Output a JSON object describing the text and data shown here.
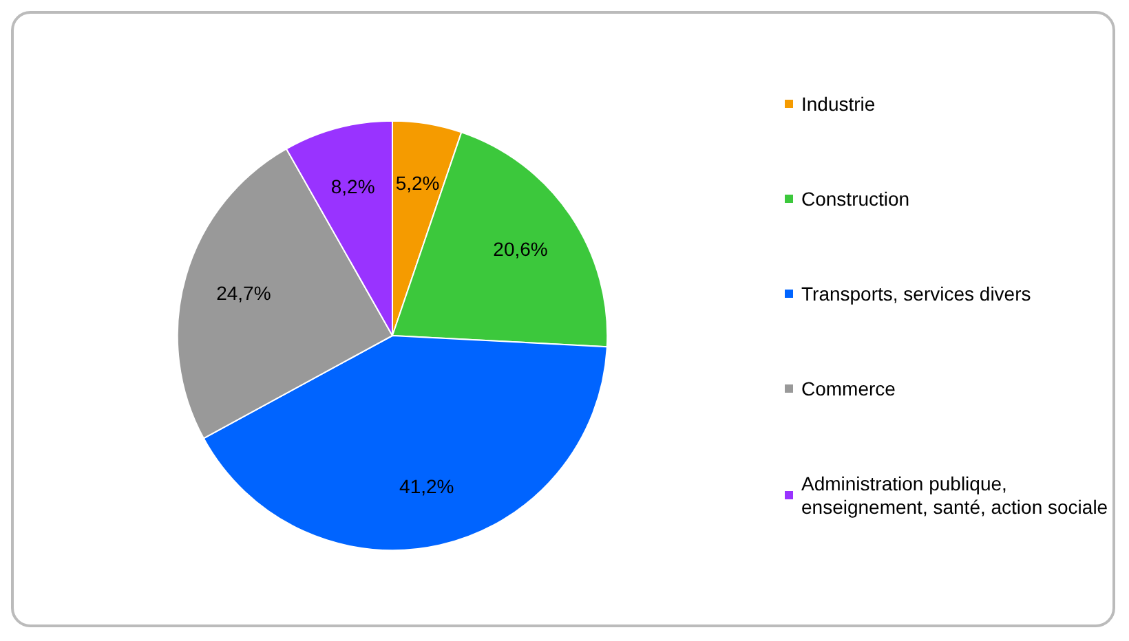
{
  "chart_data": {
    "type": "pie",
    "categories": [
      "Industrie",
      "Construction",
      "Transports, services divers",
      "Commerce",
      "Administration publique, enseignement, santé, action sociale"
    ],
    "values": [
      5.2,
      20.6,
      41.2,
      24.7,
      8.2
    ],
    "value_labels": [
      "5,2%",
      "20,6%",
      "41,2%",
      "24,7%",
      "8,2%"
    ],
    "colors": [
      "#f59b00",
      "#3cc83c",
      "#0064ff",
      "#999999",
      "#9933ff"
    ],
    "legend": "right"
  }
}
